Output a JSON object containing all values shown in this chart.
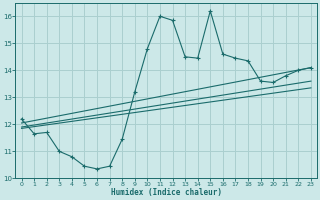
{
  "xlabel": "Humidex (Indice chaleur)",
  "bg_color": "#cce8e8",
  "grid_color": "#aacfcf",
  "line_color": "#1a6b6b",
  "xlim": [
    -0.5,
    23.5
  ],
  "ylim": [
    10,
    16.5
  ],
  "yticks": [
    10,
    11,
    12,
    13,
    14,
    15,
    16
  ],
  "xticks": [
    0,
    1,
    2,
    3,
    4,
    5,
    6,
    7,
    8,
    9,
    10,
    11,
    12,
    13,
    14,
    15,
    16,
    17,
    18,
    19,
    20,
    21,
    22,
    23
  ],
  "curve1_x": [
    0,
    1,
    2,
    3,
    4,
    5,
    6,
    7,
    8,
    9,
    10,
    11,
    12,
    13,
    14,
    15,
    16,
    17,
    18,
    19,
    20,
    21,
    22,
    23
  ],
  "curve1_y": [
    12.2,
    11.65,
    11.7,
    11.0,
    10.8,
    10.45,
    10.35,
    10.45,
    11.45,
    13.2,
    14.8,
    16.0,
    15.85,
    14.5,
    14.45,
    16.2,
    14.6,
    14.45,
    14.35,
    13.6,
    13.55,
    13.8,
    14.0,
    14.1
  ],
  "line1_x": [
    0,
    23
  ],
  "line1_y": [
    12.05,
    14.1
  ],
  "line2_x": [
    0,
    23
  ],
  "line2_y": [
    11.9,
    13.6
  ],
  "line3_x": [
    0,
    23
  ],
  "line3_y": [
    11.85,
    13.35
  ]
}
